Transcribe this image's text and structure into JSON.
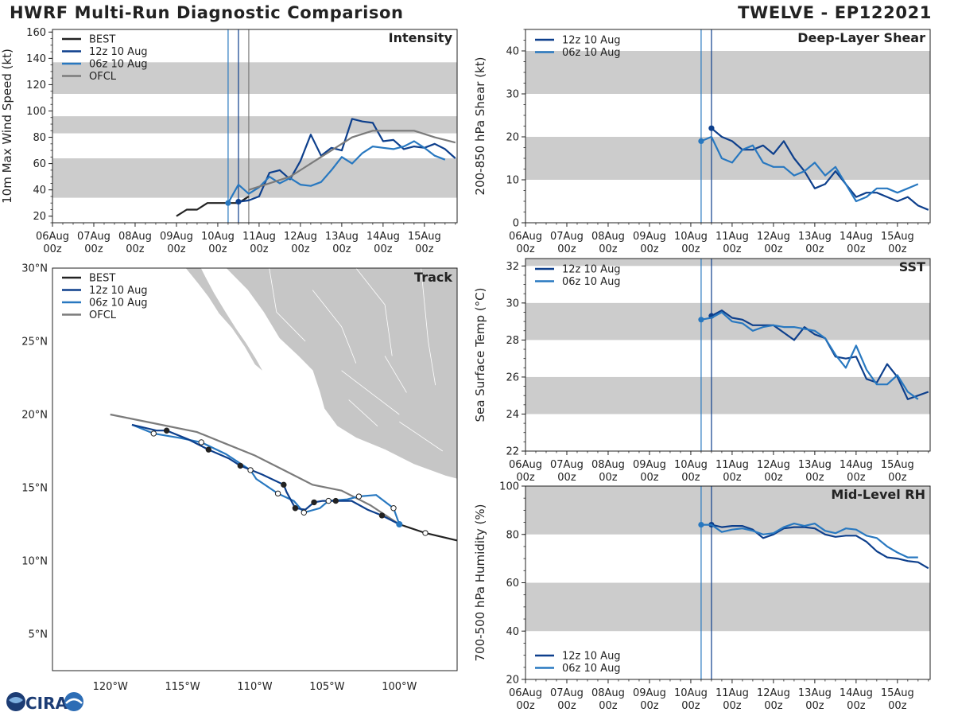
{
  "header": {
    "title_left": "HWRF Multi-Run Diagnostic Comparison",
    "title_right": "TWELVE - EP122021"
  },
  "logo": {
    "text": "CIRA"
  },
  "colors": {
    "best": "#222222",
    "run12": "#0d3f8c",
    "run06": "#2878c0",
    "ofcl": "#7b7b7b",
    "band": "#cccccc",
    "land": "#c6c6c6"
  },
  "time_axis": {
    "tick_labels": [
      [
        "06Aug",
        "00z"
      ],
      [
        "07Aug",
        "00z"
      ],
      [
        "08Aug",
        "00z"
      ],
      [
        "09Aug",
        "00z"
      ],
      [
        "10Aug",
        "00z"
      ],
      [
        "11Aug",
        "00z"
      ],
      [
        "12Aug",
        "00z"
      ],
      [
        "13Aug",
        "00z"
      ],
      [
        "14Aug",
        "00z"
      ],
      [
        "15Aug",
        "00z"
      ]
    ]
  },
  "chart_data": [
    {
      "id": "intensity",
      "type": "line",
      "title": "Intensity",
      "xlabel": "",
      "ylabel": "10m Max Wind Speed (kt)",
      "xlim": [
        0,
        235
      ],
      "ylim": [
        15,
        162
      ],
      "yticks": [
        20,
        40,
        60,
        80,
        100,
        120,
        140,
        160
      ],
      "bands": [
        [
          34,
          64
        ],
        [
          83,
          96
        ],
        [
          113,
          137
        ]
      ],
      "vlines": [
        {
          "x": 102,
          "series": "run06"
        },
        {
          "x": 108,
          "series": "run12"
        },
        {
          "x": 114,
          "series": "ofcl"
        }
      ],
      "legend": [
        "BEST",
        "12z 10 Aug",
        "06z 10 Aug",
        "OFCL"
      ],
      "series": [
        {
          "name": "BEST",
          "key": "best",
          "x": [
            72,
            78,
            84,
            90,
            96,
            102,
            108,
            114
          ],
          "y": [
            20,
            25,
            25,
            30,
            30,
            30,
            30,
            35
          ],
          "marker_first": false
        },
        {
          "name": "12z 10 Aug",
          "key": "run12",
          "x": [
            108,
            114,
            120,
            126,
            132,
            138,
            144,
            150,
            156,
            162,
            168,
            174,
            180,
            186,
            192,
            198,
            204,
            210,
            216,
            222,
            228,
            234
          ],
          "y": [
            31,
            32,
            35,
            53,
            55,
            48,
            62,
            82,
            66,
            72,
            70,
            94,
            92,
            91,
            77,
            78,
            71,
            73,
            72,
            75,
            71,
            64
          ],
          "marker_first": true
        },
        {
          "name": "06z 10 Aug",
          "key": "run06",
          "x": [
            102,
            108,
            114,
            120,
            126,
            132,
            138,
            144,
            150,
            156,
            162,
            168,
            174,
            180,
            186,
            192,
            198,
            204,
            210,
            216,
            222,
            228
          ],
          "y": [
            30,
            44,
            37,
            42,
            50,
            45,
            49,
            44,
            43,
            46,
            55,
            65,
            60,
            68,
            73,
            72,
            71,
            73,
            77,
            72,
            66,
            63
          ],
          "marker_first": true
        },
        {
          "name": "OFCL",
          "key": "ofcl",
          "x": [
            114,
            126,
            138,
            150,
            162,
            174,
            186,
            198,
            210,
            222,
            234
          ],
          "y": [
            40,
            45,
            50,
            60,
            70,
            80,
            85,
            85,
            85,
            80,
            76
          ],
          "marker_first": false
        }
      ]
    },
    {
      "id": "shear",
      "type": "line",
      "title": "Deep-Layer Shear",
      "xlabel": "",
      "ylabel": "200-850 hPa Shear (kt)",
      "xlim": [
        0,
        235
      ],
      "ylim": [
        0,
        45
      ],
      "yticks": [
        0,
        10,
        20,
        30,
        40
      ],
      "bands": [
        [
          10,
          20
        ],
        [
          30,
          40
        ]
      ],
      "vlines": [
        {
          "x": 102,
          "series": "run06"
        },
        {
          "x": 108,
          "series": "run12"
        }
      ],
      "legend": [
        "12z 10 Aug",
        "06z 10 Aug"
      ],
      "series": [
        {
          "name": "12z 10 Aug",
          "key": "run12",
          "x": [
            108,
            114,
            120,
            126,
            132,
            138,
            144,
            150,
            156,
            162,
            168,
            174,
            180,
            186,
            192,
            198,
            204,
            210,
            216,
            222,
            228,
            234
          ],
          "y": [
            22,
            20,
            19,
            17,
            17,
            18,
            16,
            19,
            15,
            12,
            8,
            9,
            12,
            9,
            6,
            7,
            7,
            6,
            5,
            6,
            4,
            3
          ],
          "marker_first": true
        },
        {
          "name": "06z 10 Aug",
          "key": "run06",
          "x": [
            102,
            108,
            114,
            120,
            126,
            132,
            138,
            144,
            150,
            156,
            162,
            168,
            174,
            180,
            186,
            192,
            198,
            204,
            210,
            216,
            222,
            228
          ],
          "y": [
            19,
            20,
            15,
            14,
            17,
            18,
            14,
            13,
            13,
            11,
            12,
            14,
            11,
            13,
            9,
            5,
            6,
            8,
            8,
            7,
            8,
            9
          ],
          "marker_first": true
        }
      ]
    },
    {
      "id": "sst",
      "type": "line",
      "title": "SST",
      "xlabel": "",
      "ylabel": "Sea Surface Temp (°C)",
      "xlim": [
        0,
        235
      ],
      "ylim": [
        22,
        32.4
      ],
      "yticks": [
        22,
        24,
        26,
        28,
        30,
        32
      ],
      "bands": [
        [
          24,
          26
        ],
        [
          28,
          30
        ],
        [
          32,
          32.4
        ]
      ],
      "vlines": [
        {
          "x": 102,
          "series": "run06"
        },
        {
          "x": 108,
          "series": "run12"
        }
      ],
      "legend": [
        "12z 10 Aug",
        "06z 10 Aug"
      ],
      "series": [
        {
          "name": "12z 10 Aug",
          "key": "run12",
          "x": [
            108,
            114,
            120,
            126,
            132,
            138,
            144,
            150,
            156,
            162,
            168,
            174,
            180,
            186,
            192,
            198,
            204,
            210,
            216,
            222,
            228,
            234
          ],
          "y": [
            29.3,
            29.6,
            29.2,
            29.1,
            28.8,
            28.8,
            28.8,
            28.4,
            28.0,
            28.7,
            28.3,
            28.1,
            27.1,
            27.0,
            27.1,
            25.9,
            25.7,
            26.7,
            26.0,
            24.8,
            25.0,
            25.2
          ],
          "marker_first": true
        },
        {
          "name": "06z 10 Aug",
          "key": "run06",
          "x": [
            102,
            108,
            114,
            120,
            126,
            132,
            138,
            144,
            150,
            156,
            162,
            168,
            174,
            180,
            186,
            192,
            198,
            204,
            210,
            216,
            222,
            228
          ],
          "y": [
            29.1,
            29.2,
            29.5,
            29.0,
            28.9,
            28.5,
            28.7,
            28.8,
            28.7,
            28.7,
            28.6,
            28.5,
            28.1,
            27.2,
            26.5,
            27.7,
            26.4,
            25.6,
            25.6,
            26.1,
            25.2,
            24.8
          ],
          "marker_first": true
        }
      ]
    },
    {
      "id": "rh",
      "type": "line",
      "title": "Mid-Level RH",
      "xlabel": "",
      "ylabel": "700-500 hPa Humidity (%)",
      "xlim": [
        0,
        235
      ],
      "ylim": [
        20,
        100
      ],
      "yticks": [
        20,
        40,
        60,
        80,
        100
      ],
      "bands": [
        [
          40,
          60
        ],
        [
          80,
          100
        ]
      ],
      "vlines": [
        {
          "x": 102,
          "series": "run06"
        },
        {
          "x": 108,
          "series": "run12"
        }
      ],
      "legend": [
        "12z 10 Aug",
        "06z 10 Aug"
      ],
      "series": [
        {
          "name": "12z 10 Aug",
          "key": "run12",
          "x": [
            108,
            114,
            120,
            126,
            132,
            138,
            144,
            150,
            156,
            162,
            168,
            174,
            180,
            186,
            192,
            198,
            204,
            210,
            216,
            222,
            228,
            234
          ],
          "y": [
            84,
            83,
            83.5,
            83.5,
            82,
            78.5,
            80,
            82.5,
            83,
            83,
            82.5,
            80,
            79,
            79.5,
            79.5,
            77,
            73,
            70.5,
            70,
            69,
            68.5,
            66
          ],
          "marker_first": true
        },
        {
          "name": "06z 10 Aug",
          "key": "run06",
          "x": [
            102,
            108,
            114,
            120,
            126,
            132,
            138,
            144,
            150,
            156,
            162,
            168,
            174,
            180,
            186,
            192,
            198,
            204,
            210,
            216,
            222,
            228
          ],
          "y": [
            84,
            84,
            81,
            82,
            82.5,
            81.5,
            80,
            80.5,
            83,
            84.5,
            83.5,
            84.5,
            81.5,
            80.5,
            82.5,
            82,
            79.5,
            78.5,
            75,
            72.5,
            70.5,
            70.5
          ],
          "marker_first": true
        }
      ]
    },
    {
      "id": "track",
      "type": "scatter",
      "title": "Track",
      "xlabel": "",
      "ylabel": "",
      "lon_range": [
        -124,
        -96
      ],
      "lat_range": [
        2.5,
        30
      ],
      "xticks": [
        {
          "value": -120,
          "label": "120°W"
        },
        {
          "value": -115,
          "label": "115°W"
        },
        {
          "value": -110,
          "label": "110°W"
        },
        {
          "value": -105,
          "label": "105°W"
        },
        {
          "value": -100,
          "label": "100°W"
        }
      ],
      "yticks": [
        {
          "value": 5,
          "label": "5°N"
        },
        {
          "value": 10,
          "label": "10°N"
        },
        {
          "value": 15,
          "label": "15°N"
        },
        {
          "value": 20,
          "label": "20°N"
        },
        {
          "value": 25,
          "label": "25°N"
        },
        {
          "value": 30,
          "label": "30°N"
        }
      ],
      "legend": [
        "BEST",
        "12z 10 Aug",
        "06z 10 Aug",
        "OFCL"
      ],
      "series": [
        {
          "name": "BEST",
          "key": "best",
          "lon": [
            -95.6,
            -98.2,
            -100.0
          ],
          "lat": [
            11.3,
            11.9,
            12.5
          ]
        },
        {
          "name": "12z 10 Aug",
          "key": "run12",
          "lon": [
            -100.0,
            -101.2,
            -102.2,
            -103.3,
            -104.4,
            -105.3,
            -105.9,
            -106.5,
            -107.2,
            -107.8,
            -108.0,
            -109.5,
            -111.0,
            -111.8,
            -113.2,
            -114.6,
            -116.1,
            -116.8,
            -118.5
          ],
          "lat": [
            12.5,
            13.1,
            13.5,
            14.1,
            14.1,
            14.1,
            14.0,
            13.5,
            13.6,
            14.7,
            15.2,
            15.9,
            16.5,
            17.0,
            17.6,
            18.3,
            18.9,
            18.9,
            19.3
          ],
          "filled_markers": [
            1,
            4,
            6,
            8,
            10,
            12,
            14,
            16
          ]
        },
        {
          "name": "06z 10 Aug",
          "key": "run06",
          "lon": [
            -100.0,
            -100.4,
            -101.6,
            -102.8,
            -103.6,
            -104.9,
            -105.5,
            -106.6,
            -107.3,
            -108.4,
            -109.9,
            -110.3,
            -112.0,
            -113.7,
            -115.2,
            -117.0,
            -118.5
          ],
          "lat": [
            12.5,
            13.6,
            14.5,
            14.4,
            14.2,
            14.1,
            13.6,
            13.3,
            14.1,
            14.6,
            15.6,
            16.2,
            17.3,
            18.1,
            18.4,
            18.7,
            19.3
          ],
          "filled_markers": []
        },
        {
          "name": "OFCL",
          "key": "ofcl",
          "lon": [
            -100.0,
            -102.0,
            -104.0,
            -106.0,
            -108.0,
            -110.0,
            -112.0,
            -114.0,
            -117.0,
            -120.0
          ],
          "lat": [
            12.5,
            13.8,
            14.8,
            15.2,
            16.2,
            17.2,
            18.0,
            18.8,
            19.4,
            20.0
          ],
          "filled_markers": []
        }
      ]
    }
  ]
}
